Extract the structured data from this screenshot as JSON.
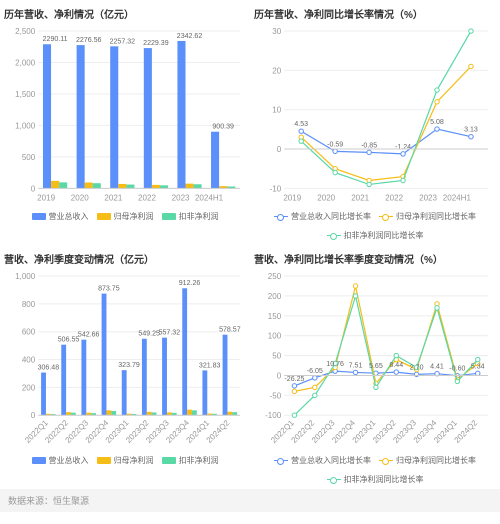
{
  "source_label": "数据来源：恒生聚源",
  "colors": {
    "blue": "#5b8ff9",
    "orange": "#f6bd16",
    "teal": "#5ad8a6",
    "grid": "#eeeeee",
    "axis": "#cccccc",
    "bg": "#ffffff",
    "text": "#666666"
  },
  "legend_labels": {
    "rev": "营业总收入",
    "np": "归母净利润",
    "np2": "扣非净利润",
    "rev_g": "营业总收入同比增长率",
    "np_g": "归母净利润同比增长率",
    "np2_g": "扣非净利润同比增长率"
  },
  "panelA": {
    "title": "历年营收、净利情况（亿元）",
    "type": "grouped-bar",
    "categories": [
      "2019",
      "2020",
      "2021",
      "2022",
      "2023",
      "2024H1"
    ],
    "series": [
      {
        "key": "rev",
        "color": "#5b8ff9",
        "values": [
          2290.11,
          2276.56,
          2257.32,
          2229.39,
          2342.62,
          900.39
        ]
      },
      {
        "key": "np",
        "color": "#f6bd16",
        "values": [
          119,
          93,
          70,
          55,
          75,
          35
        ]
      },
      {
        "key": "np2",
        "color": "#5ad8a6",
        "values": [
          95,
          82,
          60,
          48,
          65,
          30
        ]
      }
    ],
    "show_labels_series": 0,
    "ylim": [
      0,
      2500
    ],
    "ytick_step": 500
  },
  "panelB": {
    "title": "历年营收、净利同比增长率情况（%）",
    "type": "line",
    "categories": [
      "2019",
      "2020",
      "2021",
      "2022",
      "2023",
      "2024H1"
    ],
    "series": [
      {
        "key": "rev_g",
        "color": "#5b8ff9",
        "values": [
          4.53,
          -0.59,
          -0.85,
          -1.24,
          5.08,
          3.13
        ]
      },
      {
        "key": "np_g",
        "color": "#f6bd16",
        "values": [
          3,
          -5,
          -8,
          -7,
          12,
          21
        ]
      },
      {
        "key": "np2_g",
        "color": "#5ad8a6",
        "values": [
          2,
          -6,
          -9,
          -8,
          15,
          30
        ]
      }
    ],
    "label_points": [
      4.53,
      -0.59,
      -0.85,
      -1.24,
      5.08,
      3.13
    ],
    "ylim": [
      -10,
      30
    ],
    "ytick_step": 10
  },
  "panelC": {
    "title": "营收、净利季度变动情况（亿元）",
    "type": "grouped-bar",
    "categories": [
      "2022Q1",
      "2022Q2",
      "2022Q3",
      "2022Q4",
      "2023Q1",
      "2023Q2",
      "2023Q3",
      "2023Q4",
      "2024Q1",
      "2024Q2"
    ],
    "series": [
      {
        "key": "rev",
        "color": "#5b8ff9",
        "values": [
          306.48,
          506.55,
          542.66,
          873.75,
          323.79,
          549.25,
          557.32,
          912.26,
          321.83,
          578.57
        ]
      },
      {
        "key": "np",
        "color": "#f6bd16",
        "values": [
          10,
          22,
          18,
          35,
          11,
          24,
          20,
          40,
          12,
          25
        ]
      },
      {
        "key": "np2",
        "color": "#5ad8a6",
        "values": [
          8,
          18,
          15,
          30,
          9,
          20,
          17,
          35,
          10,
          22
        ]
      }
    ],
    "show_labels_series": 0,
    "ylim": [
      0,
      1000
    ],
    "ytick_step": 200
  },
  "panelD": {
    "title": "营收、净利同比增长率季度变动情况（%）",
    "type": "line",
    "categories": [
      "2022Q1",
      "2022Q2",
      "2022Q3",
      "2022Q4",
      "2023Q1",
      "2023Q2",
      "2023Q3",
      "2023Q4",
      "2024Q1",
      "2024Q2"
    ],
    "series": [
      {
        "key": "rev_g",
        "color": "#5b8ff9",
        "values": [
          -26.25,
          -6.05,
          10.76,
          7.51,
          5.65,
          8.44,
          2.7,
          4.41,
          -0.6,
          5.34
        ]
      },
      {
        "key": "np_g",
        "color": "#f6bd16",
        "values": [
          -40,
          -30,
          20,
          225,
          -20,
          40,
          15,
          180,
          -10,
          30
        ]
      },
      {
        "key": "np2_g",
        "color": "#5ad8a6",
        "values": [
          -100,
          -50,
          30,
          200,
          -30,
          50,
          20,
          170,
          -15,
          40
        ]
      }
    ],
    "label_points": [
      -26.25,
      -6.05,
      10.76,
      7.51,
      5.65,
      8.44,
      2.7,
      4.41,
      -0.6,
      5.34
    ],
    "ylim": [
      -100,
      250
    ],
    "ytick_step": 50
  }
}
